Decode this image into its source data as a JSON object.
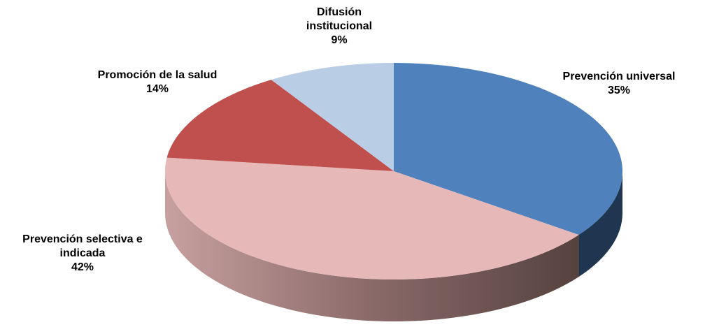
{
  "chart_data": {
    "type": "pie",
    "categories": [
      "Prevención universal",
      "Prevención selectiva e indicada",
      "Promoción de la salud",
      "Difusión institucional"
    ],
    "values": [
      35,
      42,
      14,
      9
    ],
    "value_labels": [
      "35%",
      "42%",
      "14%",
      "9%"
    ],
    "colors": [
      "#4f81bd",
      "#e6b9b8",
      "#c0504d",
      "#b9cde5"
    ]
  }
}
